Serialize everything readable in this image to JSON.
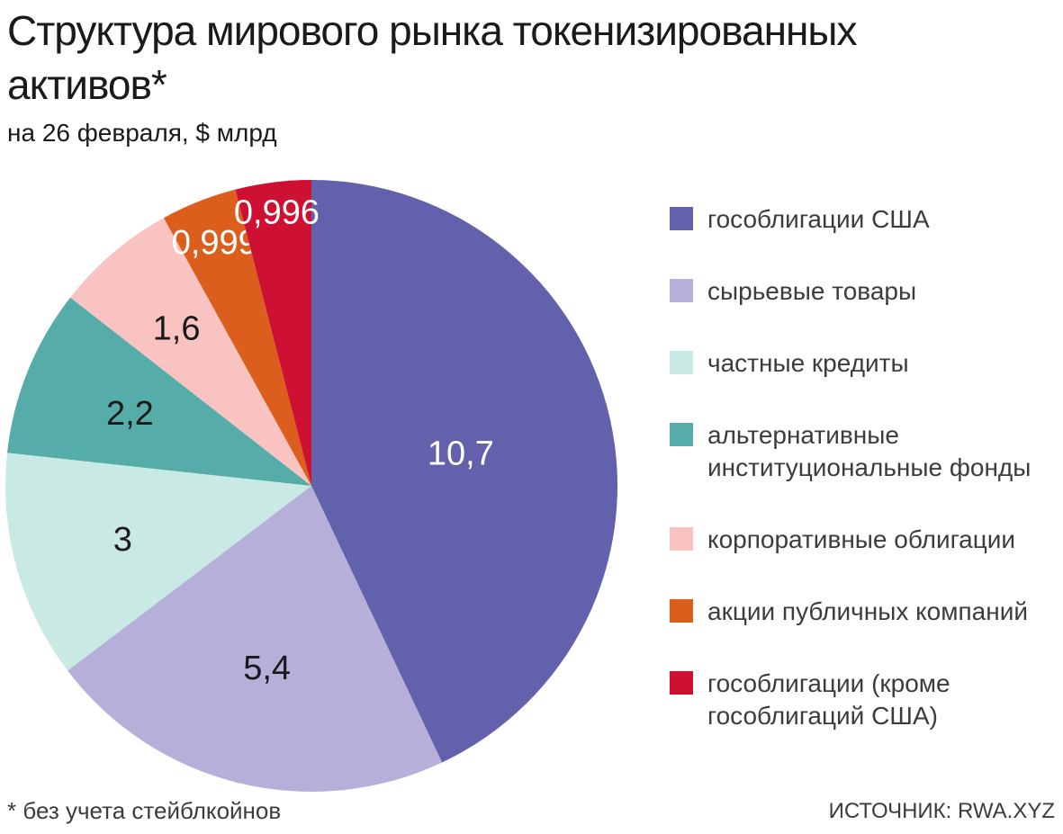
{
  "header": {
    "title": "Структура мирового рынка токенизированных активов*",
    "subtitle": "на 26 февраля, $ млрд"
  },
  "footer": {
    "note": "* без учета стейблкойнов",
    "source": "ИСТОЧНИК: RWA.XYZ"
  },
  "chart_data": {
    "type": "pie",
    "title": "Структура мирового рынка токенизированных активов*",
    "subtitle": "на 26 февраля, $ млрд",
    "unit": "$ млрд",
    "categories": [
      "гособлигации США",
      "сырьевые товары",
      "частные кредиты",
      "альтернативные институциональные фонды",
      "корпоративные облигации",
      "акции публичных компаний",
      "гособлигации (кроме гособлигаций США)"
    ],
    "values": [
      10.7,
      5.4,
      3,
      2.2,
      1.6,
      0.999,
      0.996
    ],
    "slices": [
      {
        "label": "гособлигации США",
        "legend_label": "гособлигации США",
        "value": 10.7,
        "display_value": "10,7",
        "color": "#6360ac",
        "value_text_color": "#ffffff",
        "label_radius_fraction": 0.5
      },
      {
        "label": "сырьевые товары",
        "legend_label": "сырьевые товары",
        "value": 5.4,
        "display_value": "5,4",
        "color": "#b5afd9",
        "value_text_color": "#1a1a1a",
        "label_radius_fraction": 0.61
      },
      {
        "label": "частные кредиты",
        "legend_label": "частные кредиты",
        "value": 3,
        "display_value": "3",
        "color": "#c9e9e4",
        "value_text_color": "#1a1a1a",
        "label_radius_fraction": 0.64
      },
      {
        "label": "альтернативные институциональные фонды",
        "legend_label": "альтернативные\nинституциональные фонды",
        "value": 2.2,
        "display_value": "2,2",
        "color": "#55aca8",
        "value_text_color": "#1a1a1a",
        "label_radius_fraction": 0.64
      },
      {
        "label": "корпоративные облигации",
        "legend_label": "корпоративные облигации",
        "value": 1.6,
        "display_value": "1,6",
        "color": "#f8c3c0",
        "value_text_color": "#1a1a1a",
        "label_radius_fraction": 0.68
      },
      {
        "label": "акции публичных компаний",
        "legend_label": "акции публичных компаний",
        "value": 0.999,
        "display_value": "0,999",
        "color": "#dc5e1d",
        "value_text_color": "#ffffff",
        "label_radius_fraction": 0.86
      },
      {
        "label": "гособлигации (кроме гособлигаций США)",
        "legend_label": "гособлигации (кроме\nгособлигаций США)",
        "value": 0.996,
        "display_value": "0,996",
        "color": "#ce1133",
        "value_text_color": "#ffffff",
        "label_radius_fraction": 0.905
      }
    ],
    "layout": {
      "start_angle_deg": 0,
      "direction": "clockwise",
      "legend_position": "right",
      "grid": false
    }
  }
}
